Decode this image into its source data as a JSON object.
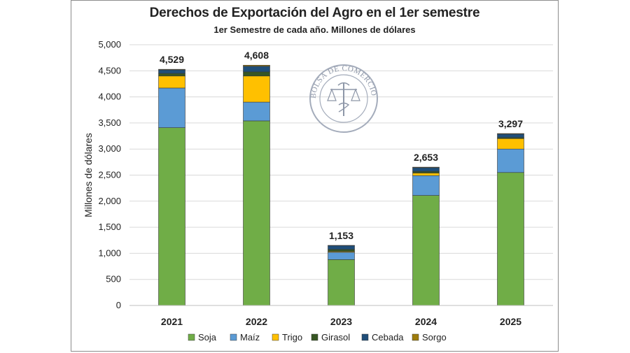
{
  "chart_data": {
    "type": "bar",
    "stacked": true,
    "title": "Derechos de Exportación del Agro en el 1er semestre",
    "subtitle": "1er Semestre de cada año. Millones de dólares",
    "xlabel": "",
    "ylabel": "Millones de dólares",
    "ylim": [
      0,
      5000
    ],
    "yticks": [
      0,
      500,
      1000,
      1500,
      2000,
      2500,
      3000,
      3500,
      4000,
      4500,
      5000
    ],
    "ytick_labels": [
      "0",
      "500",
      "1,000",
      "1,500",
      "2,000",
      "2,500",
      "3,000",
      "3,500",
      "4,000",
      "4,500",
      "5,000"
    ],
    "categories": [
      "2021",
      "2022",
      "2023",
      "2024",
      "2025"
    ],
    "totals": [
      "4,529",
      "4,608",
      "1,153",
      "2,653",
      "3,297"
    ],
    "grid": true,
    "legend_position": "bottom",
    "series": [
      {
        "name": "Soja",
        "color": "#70ad47",
        "values": [
          3410,
          3540,
          880,
          2110,
          2550
        ]
      },
      {
        "name": "Maíz",
        "color": "#5b9bd5",
        "values": [
          760,
          360,
          140,
          380,
          450
        ]
      },
      {
        "name": "Trigo",
        "color": "#ffc000",
        "values": [
          230,
          500,
          15,
          50,
          200
        ]
      },
      {
        "name": "Girasol",
        "color": "#375623",
        "values": [
          50,
          80,
          40,
          30,
          20
        ]
      },
      {
        "name": "Cebada",
        "color": "#1f4e79",
        "values": [
          69,
          108,
          73,
          73,
          67
        ]
      },
      {
        "name": "Sorgo",
        "color": "#9e7c0c",
        "values": [
          10,
          20,
          5,
          10,
          10
        ]
      }
    ]
  },
  "watermark": {
    "text": "BOLSA DE COMERCIO DE ROSARIO",
    "color": "#8e97a8"
  }
}
